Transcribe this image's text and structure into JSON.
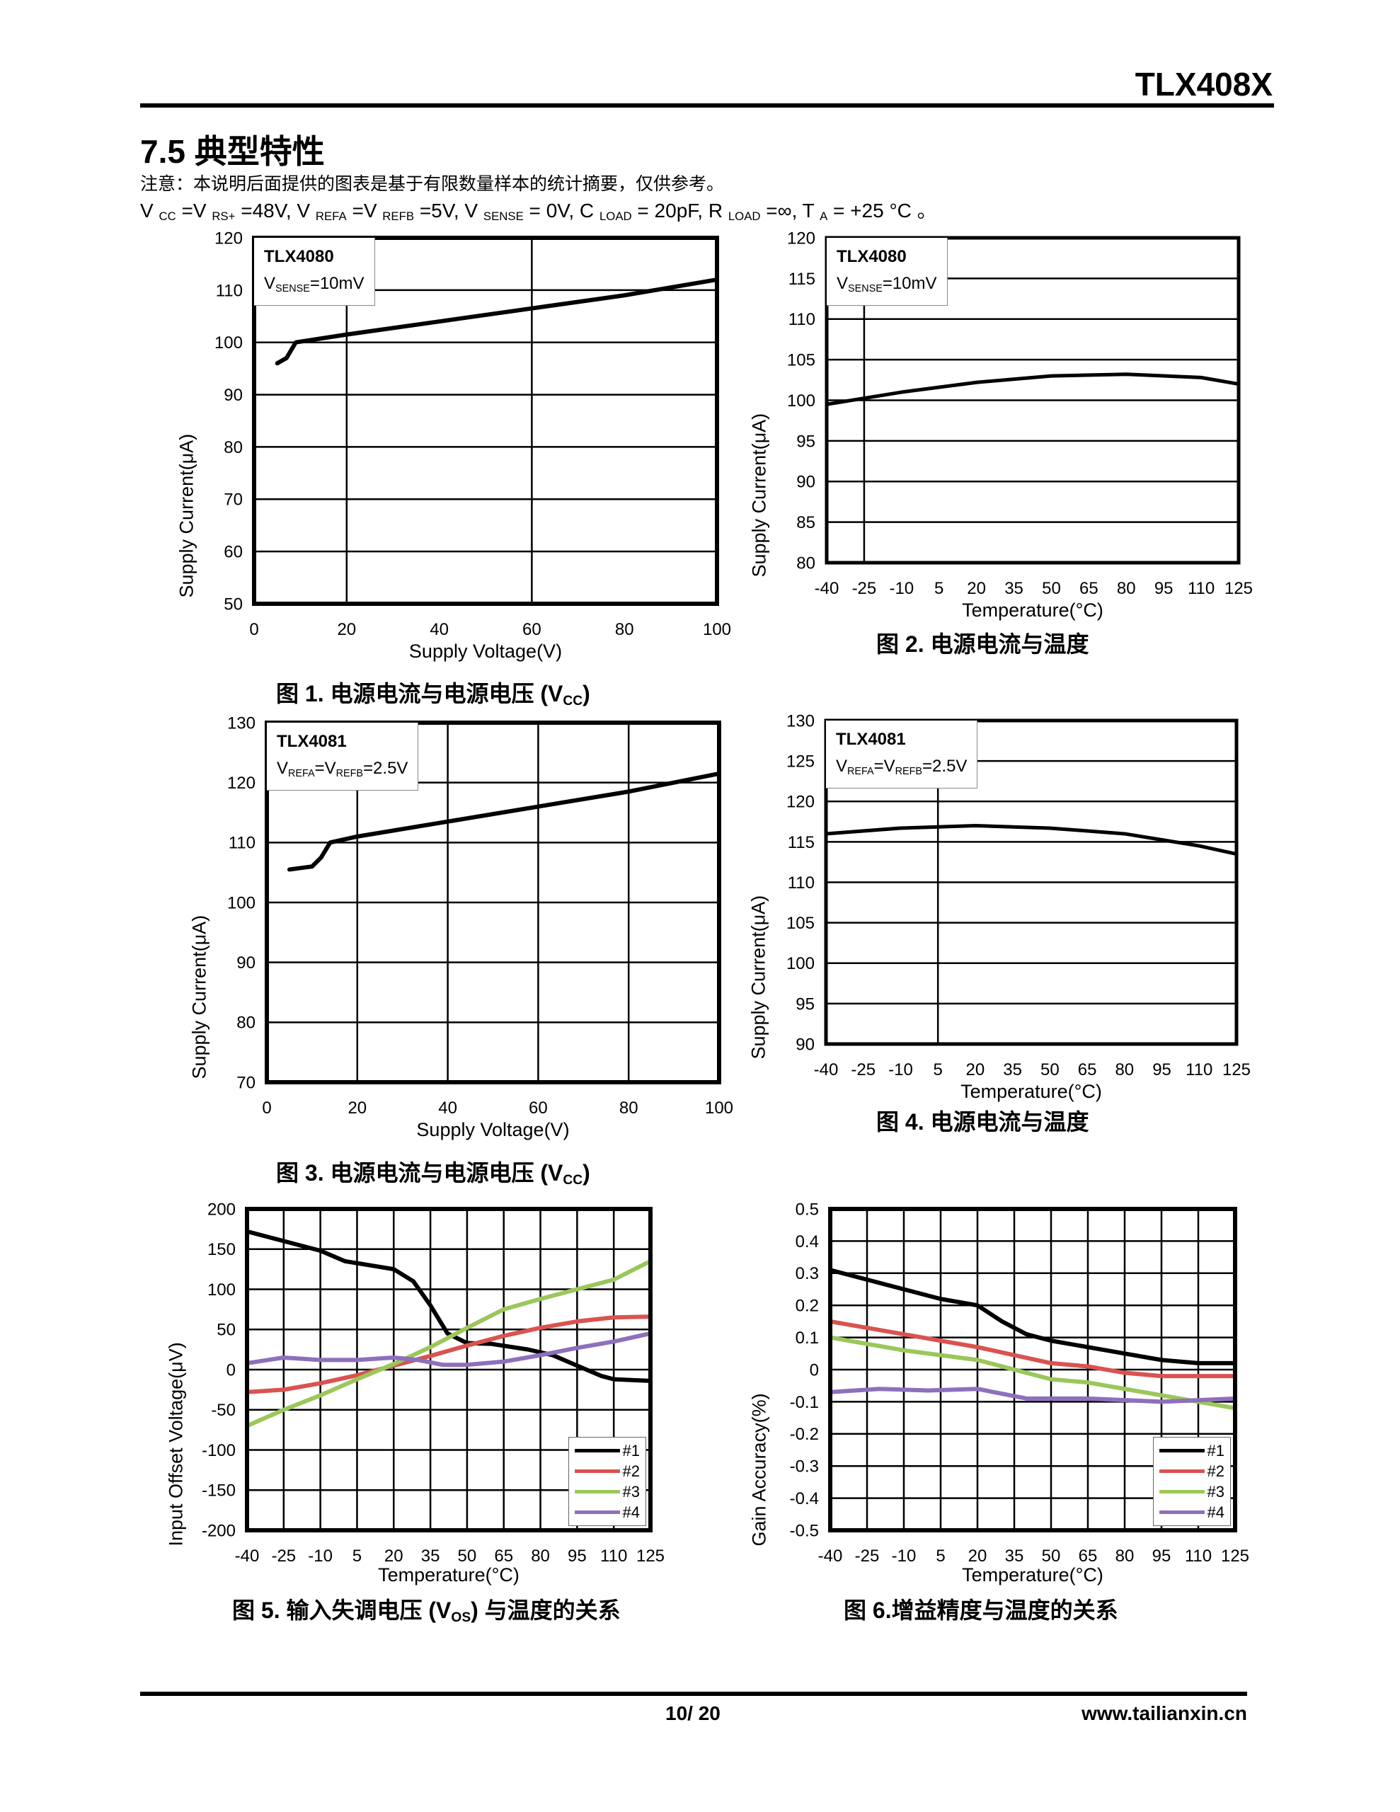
{
  "header": {
    "doc_id": "TLX408X"
  },
  "section": {
    "title": "7.5 典型特性",
    "note": "注意：本说明后面提供的图表是基于有限数量样本的统计摘要，仅供参考。",
    "cond": {
      "p1": "V ",
      "s1": "CC",
      "p2": " =V ",
      "s2": "RS+",
      "p3": " =48V, V ",
      "s3": "REFA",
      "p4": " =V ",
      "s4": "REFB",
      "p5": " =5V, V ",
      "s5": "SENSE",
      "p6": " = 0V, C ",
      "s6": "LOAD",
      "p7": " = 20pF, R ",
      "s7": "LOAD",
      "p8": " =∞, T ",
      "s8": "A",
      "p9": " = +25 °C 。"
    }
  },
  "footer": {
    "page": "10/ 20",
    "url": "www.tailianxin.cn"
  },
  "chart_data": [
    {
      "type": "line",
      "title": "图 1. 电源电流与电源电压 (VCC)",
      "cap": {
        "a": "图 ",
        "b": "1.",
        "c": " 电源电流与电源电压 (V",
        "d": "CC",
        "e": ")"
      },
      "xlabel": "Supply Voltage(V)",
      "ylabel": "Supply Current(μA)",
      "xlim": [
        0,
        100
      ],
      "ylim": [
        50,
        120
      ],
      "xticks": [
        0,
        20,
        40,
        60,
        80,
        100
      ],
      "yticks": [
        50,
        60,
        70,
        80,
        90,
        100,
        110,
        120
      ],
      "xgrid": [
        20,
        60
      ],
      "ygrid": [
        60,
        70,
        80,
        90,
        100,
        110
      ],
      "anno": {
        "title": "TLX4080",
        "v": "V",
        "s1": "SENSE",
        "r1": "=10mV"
      },
      "series": [
        {
          "name": "TLX4080",
          "color": "#000000",
          "x": [
            5,
            7,
            9,
            20,
            40,
            60,
            80,
            100
          ],
          "y": [
            96,
            97,
            100,
            101.5,
            104,
            106.5,
            109,
            112
          ]
        }
      ]
    },
    {
      "type": "line",
      "title": "图 2. 电源电流与温度",
      "cap": {
        "a": "图 ",
        "b": "2.",
        "c": " 电源电流与温度",
        "d": "",
        "e": ""
      },
      "xlabel": "Temperature(°C)",
      "ylabel": "Supply Current(μA)",
      "xlim": [
        -40,
        125
      ],
      "ylim": [
        80,
        120
      ],
      "xticks": [
        -40,
        -25,
        -10,
        5,
        20,
        35,
        50,
        65,
        80,
        95,
        110,
        125
      ],
      "yticks": [
        80,
        85,
        90,
        95,
        100,
        105,
        110,
        115,
        120
      ],
      "xgrid": [
        -25
      ],
      "ygrid": [
        85,
        90,
        95,
        100,
        105,
        110,
        115
      ],
      "anno": {
        "title": "TLX4080",
        "v": "V",
        "s1": "SENSE",
        "r1": "=10mV"
      },
      "series": [
        {
          "name": "TLX4080",
          "color": "#000000",
          "x": [
            -40,
            -10,
            20,
            50,
            80,
            110,
            125
          ],
          "y": [
            99.5,
            101,
            102.2,
            103,
            103.2,
            102.8,
            102
          ]
        }
      ]
    },
    {
      "type": "line",
      "title": "图 3. 电源电流与电源电压 (VCC)",
      "cap": {
        "a": "图 ",
        "b": "3.",
        "c": " 电源电流与电源电压 (V",
        "d": "CC",
        "e": ")"
      },
      "xlabel": "Supply Voltage(V)",
      "ylabel": "Supply Current(μA)",
      "xlim": [
        0,
        100
      ],
      "ylim": [
        70,
        130
      ],
      "xticks": [
        0,
        20,
        40,
        60,
        80,
        100
      ],
      "yticks": [
        70,
        80,
        90,
        100,
        110,
        120,
        130
      ],
      "xgrid": [
        20,
        40,
        60,
        80
      ],
      "ygrid": [
        80,
        90,
        100,
        110,
        120
      ],
      "anno": {
        "title": "TLX4081",
        "v": "V",
        "s1": "REFA",
        "r1": "=V",
        "s2": "REFB",
        "r2": "=2.5V"
      },
      "series": [
        {
          "name": "TLX4081",
          "color": "#000000",
          "x": [
            5,
            10,
            12,
            14,
            20,
            40,
            60,
            80,
            100
          ],
          "y": [
            105.5,
            106,
            107.5,
            110,
            111,
            113.5,
            116,
            118.5,
            121.5
          ]
        }
      ]
    },
    {
      "type": "line",
      "title": "图 4. 电源电流与温度",
      "cap": {
        "a": "图 ",
        "b": "4.",
        "c": " 电源电流与温度",
        "d": "",
        "e": ""
      },
      "xlabel": "Temperature(°C)",
      "ylabel": "Supply Current(μA)",
      "xlim": [
        -40,
        125
      ],
      "ylim": [
        90,
        130
      ],
      "xticks": [
        -40,
        -25,
        -10,
        5,
        20,
        35,
        50,
        65,
        80,
        95,
        110,
        125
      ],
      "yticks": [
        90,
        95,
        100,
        105,
        110,
        115,
        120,
        125,
        130
      ],
      "xgrid": [
        5
      ],
      "ygrid": [
        95,
        100,
        105,
        110,
        115,
        120,
        125
      ],
      "anno": {
        "title": "TLX4081",
        "v": "V",
        "s1": "REFA",
        "r1": "=V",
        "s2": "REFB",
        "r2": "=2.5V"
      },
      "series": [
        {
          "name": "TLX4081",
          "color": "#000000",
          "x": [
            -40,
            -10,
            20,
            50,
            80,
            110,
            125
          ],
          "y": [
            116,
            116.7,
            117,
            116.7,
            116,
            114.5,
            113.5
          ]
        }
      ]
    },
    {
      "type": "line",
      "title": "图 5. 输入失调电压 (VOS) 与温度的关系",
      "cap": {
        "a": "图 ",
        "b": "5.",
        "c": " 输入失调电压 (V",
        "d": "OS",
        "e": ") 与温度的关系"
      },
      "xlabel": "Temperature(°C)",
      "ylabel": "Input Offset Voltage(μV)",
      "xlim": [
        -40,
        125
      ],
      "ylim": [
        -200,
        200
      ],
      "xticks": [
        -40,
        -25,
        -10,
        5,
        20,
        35,
        50,
        65,
        80,
        95,
        110,
        125
      ],
      "yticks": [
        -200,
        -150,
        -100,
        -50,
        0,
        50,
        100,
        150,
        200
      ],
      "xgrid": [
        -25,
        -10,
        5,
        20,
        35,
        50,
        65,
        80,
        95,
        110
      ],
      "ygrid": [
        -150,
        -100,
        -50,
        0,
        50,
        100,
        150
      ],
      "legend": "bottom-right",
      "series": [
        {
          "name": "#1",
          "color": "#000000",
          "x": [
            -40,
            -25,
            -10,
            0,
            10,
            20,
            28,
            35,
            42,
            50,
            60,
            75,
            85,
            95,
            105,
            110,
            125
          ],
          "y": [
            172,
            160,
            148,
            135,
            130,
            125,
            110,
            80,
            45,
            33,
            32,
            25,
            18,
            5,
            -8,
            -12,
            -14
          ]
        },
        {
          "name": "#2",
          "color": "#d9534f",
          "x": [
            -40,
            -25,
            -10,
            5,
            20,
            35,
            50,
            65,
            80,
            95,
            110,
            125
          ],
          "y": [
            -28,
            -25,
            -17,
            -7,
            5,
            17,
            30,
            42,
            52,
            60,
            65,
            66
          ]
        },
        {
          "name": "#3",
          "color": "#9bc75a",
          "x": [
            -40,
            -25,
            -10,
            5,
            20,
            35,
            50,
            65,
            80,
            95,
            110,
            125
          ],
          "y": [
            -70,
            -50,
            -32,
            -12,
            7,
            28,
            52,
            75,
            88,
            100,
            112,
            135
          ]
        },
        {
          "name": "#4",
          "color": "#8e6fbd",
          "x": [
            -40,
            -25,
            -10,
            5,
            20,
            30,
            40,
            50,
            65,
            80,
            95,
            110,
            125
          ],
          "y": [
            8,
            15,
            12,
            12,
            15,
            12,
            6,
            6,
            10,
            18,
            27,
            35,
            45
          ]
        }
      ]
    },
    {
      "type": "line",
      "title": "图 6.增益精度与温度的关系",
      "cap": {
        "a": "图 ",
        "b": "6.",
        "c": "增益精度与温度的关系",
        "d": "",
        "e": ""
      },
      "xlabel": "Temperature(°C)",
      "ylabel": "Gain Accuracy(%)",
      "xlim": [
        -40,
        125
      ],
      "ylim": [
        -0.5,
        0.5
      ],
      "xticks": [
        -40,
        -25,
        -10,
        5,
        20,
        35,
        50,
        65,
        80,
        95,
        110,
        125
      ],
      "yticks": [
        -0.5,
        -0.4,
        -0.3,
        -0.2,
        -0.1,
        0,
        0.1,
        0.2,
        0.3,
        0.4,
        0.5
      ],
      "xgrid": [
        -25,
        -10,
        5,
        20,
        35,
        50,
        65,
        80,
        95,
        110
      ],
      "ygrid": [
        -0.4,
        -0.3,
        -0.2,
        -0.1,
        0,
        0.1,
        0.2,
        0.3,
        0.4
      ],
      "legend": "bottom-right",
      "series": [
        {
          "name": "#1",
          "color": "#000000",
          "x": [
            -40,
            -10,
            5,
            20,
            30,
            40,
            50,
            65,
            80,
            95,
            110,
            125
          ],
          "y": [
            0.31,
            0.25,
            0.22,
            0.2,
            0.15,
            0.11,
            0.09,
            0.07,
            0.05,
            0.03,
            0.02,
            0.02
          ]
        },
        {
          "name": "#2",
          "color": "#d9534f",
          "x": [
            -40,
            -10,
            20,
            50,
            65,
            80,
            95,
            125
          ],
          "y": [
            0.15,
            0.11,
            0.07,
            0.02,
            0.01,
            -0.01,
            -0.02,
            -0.02
          ]
        },
        {
          "name": "#3",
          "color": "#9bc75a",
          "x": [
            -40,
            -10,
            20,
            50,
            65,
            80,
            95,
            110,
            125
          ],
          "y": [
            0.1,
            0.06,
            0.03,
            -0.03,
            -0.04,
            -0.06,
            -0.08,
            -0.1,
            -0.12
          ]
        },
        {
          "name": "#4",
          "color": "#8e6fbd",
          "x": [
            -40,
            -20,
            0,
            20,
            40,
            65,
            95,
            125
          ],
          "y": [
            -0.07,
            -0.06,
            -0.065,
            -0.06,
            -0.09,
            -0.09,
            -0.1,
            -0.09
          ]
        }
      ]
    }
  ]
}
